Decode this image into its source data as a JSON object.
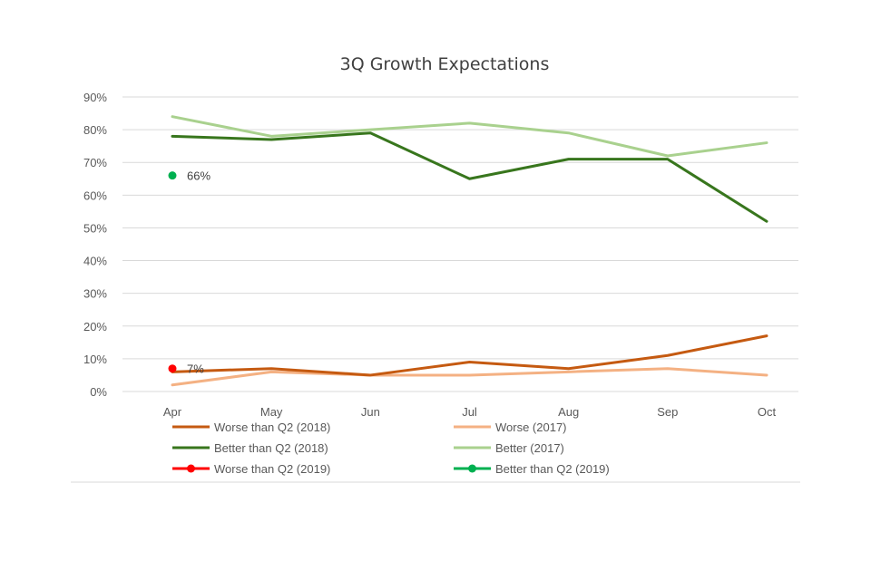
{
  "chart_data": {
    "type": "line",
    "title": "3Q Growth Expectations",
    "xlabel": "",
    "ylabel": "",
    "categories": [
      "Apr",
      "May",
      "Jun",
      "Jul",
      "Aug",
      "Sep",
      "Oct"
    ],
    "ylim": [
      0,
      90
    ],
    "yticks": [
      0,
      10,
      20,
      30,
      40,
      50,
      60,
      70,
      80,
      90
    ],
    "ytick_labels": [
      "0%",
      "10%",
      "20%",
      "30%",
      "40%",
      "50%",
      "60%",
      "70%",
      "80%",
      "90%"
    ],
    "grid": true,
    "legend_position": "bottom",
    "series": [
      {
        "name": "Worse than Q2 (2018)",
        "color": "#c55a11",
        "values": [
          6,
          7,
          5,
          9,
          7,
          11,
          17
        ]
      },
      {
        "name": "Worse (2017)",
        "color": "#f4b183",
        "values": [
          2,
          6,
          5,
          5,
          6,
          7,
          5
        ]
      },
      {
        "name": "Better than Q2 (2018)",
        "color": "#38761d",
        "values": [
          78,
          77,
          79,
          65,
          71,
          71,
          52
        ]
      },
      {
        "name": "Better (2017)",
        "color": "#a9d18e",
        "values": [
          84,
          78,
          80,
          82,
          79,
          72,
          76
        ]
      },
      {
        "name": "Worse than Q2 (2019)",
        "color": "#ff0000",
        "marker": true,
        "values": [
          7,
          null,
          null,
          null,
          null,
          null,
          null
        ],
        "data_label": "7%"
      },
      {
        "name": "Better than Q2 (2019)",
        "color": "#00b050",
        "marker": true,
        "values": [
          66,
          null,
          null,
          null,
          null,
          null,
          null
        ],
        "data_label": "66%"
      }
    ]
  }
}
